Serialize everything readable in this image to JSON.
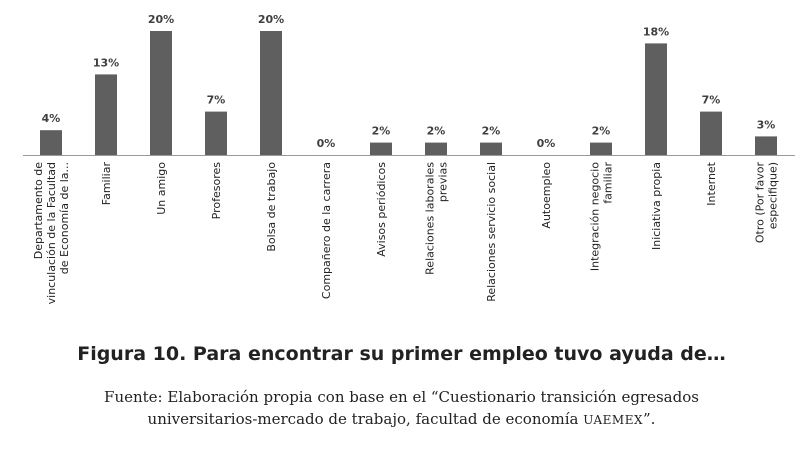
{
  "chart_data": {
    "type": "bar",
    "categories": [
      [
        "Departamento de",
        "vinculación de la Facultad",
        "de Economía de la..."
      ],
      [
        "Familiar"
      ],
      [
        "Un amigo"
      ],
      [
        "Profesores"
      ],
      [
        "Bolsa de trabajo"
      ],
      [
        "Compañero de la carrera"
      ],
      [
        "Avisos periódicos"
      ],
      [
        "Relaciones laborales",
        "previas"
      ],
      [
        "Relaciones servicio social"
      ],
      [
        "Autoempleo"
      ],
      [
        "Integración negocio",
        "familiar"
      ],
      [
        "Iniciativa propia"
      ],
      [
        "Internet"
      ],
      [
        "Otro (Por favor",
        "especifique)"
      ]
    ],
    "values": [
      4,
      13,
      20,
      7,
      20,
      0,
      2,
      2,
      2,
      0,
      2,
      18,
      7,
      3
    ],
    "data_labels": [
      "4%",
      "13%",
      "20%",
      "7%",
      "20%",
      "0%",
      "2%",
      "2%",
      "2%",
      "0%",
      "2%",
      "18%",
      "7%",
      "3%"
    ],
    "ylim": [
      0,
      20
    ],
    "grid": false,
    "bar_color": "#5f5f5f"
  },
  "figure": {
    "title": "Figura 10. Para encontrar su primer empleo tuvo ayuda de…",
    "source_line1": "Fuente: Elaboración propia con base en el “Cuestionario transición egresados",
    "source_line2_prefix": "universitarios-mercado de trabajo, facultad de economía ",
    "source_line2_smallcaps": "uaemex",
    "source_line2_suffix": "”."
  }
}
